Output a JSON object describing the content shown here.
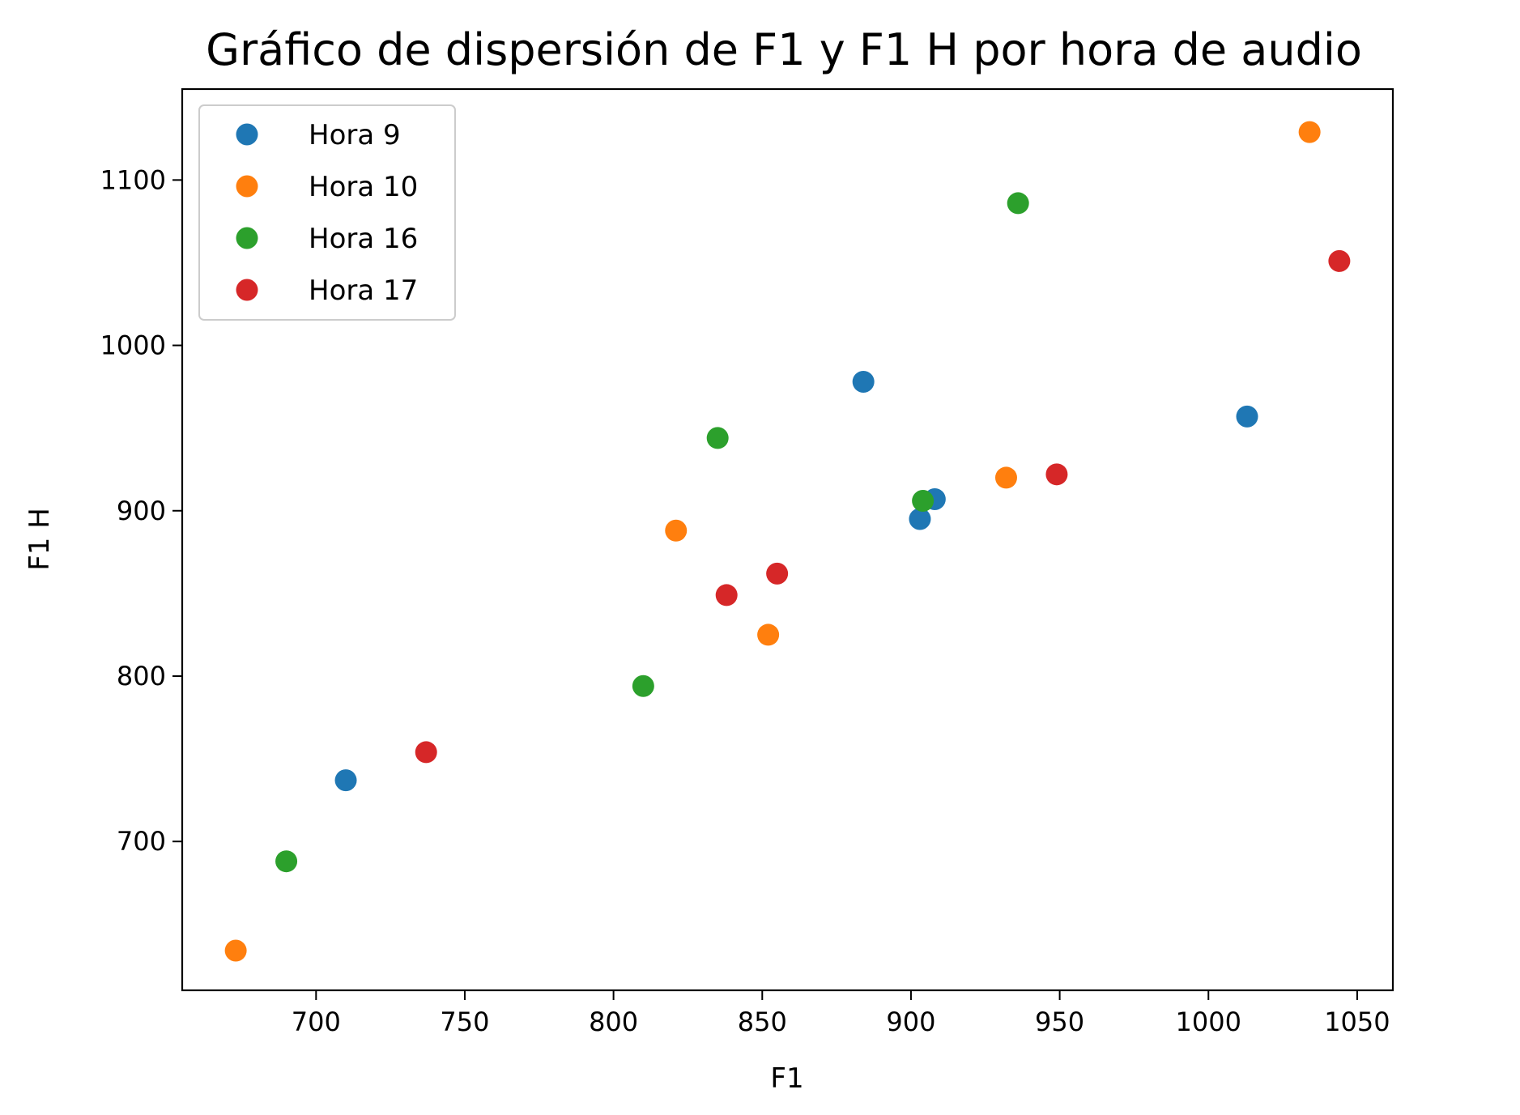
{
  "chart_data": {
    "type": "scatter",
    "title": "Gráfico de dispersión de F1 y F1 H por hora de audio",
    "xlabel": "F1",
    "ylabel": "F1 H",
    "xlim": [
      655,
      1062
    ],
    "ylim": [
      610,
      1155
    ],
    "xticks": [
      700,
      750,
      800,
      850,
      900,
      950,
      1000,
      1050
    ],
    "yticks": [
      700,
      800,
      900,
      1000,
      1100
    ],
    "grid": false,
    "legend_position": "top-left",
    "series": [
      {
        "name": "Hora 9",
        "color": "#1f77b4",
        "points": [
          [
            710,
            737
          ],
          [
            884,
            978
          ],
          [
            903,
            895
          ],
          [
            908,
            907
          ],
          [
            1013,
            957
          ]
        ]
      },
      {
        "name": "Hora 10",
        "color": "#ff7f0e",
        "points": [
          [
            673,
            634
          ],
          [
            821,
            888
          ],
          [
            852,
            825
          ],
          [
            932,
            920
          ],
          [
            1034,
            1129
          ]
        ]
      },
      {
        "name": "Hora 16",
        "color": "#2ca02c",
        "points": [
          [
            690,
            688
          ],
          [
            810,
            794
          ],
          [
            835,
            944
          ],
          [
            904,
            906
          ],
          [
            936,
            1086
          ]
        ]
      },
      {
        "name": "Hora 17",
        "color": "#d62728",
        "points": [
          [
            737,
            754
          ],
          [
            838,
            849
          ],
          [
            855,
            862
          ],
          [
            949,
            922
          ],
          [
            1044,
            1051
          ]
        ]
      }
    ]
  }
}
